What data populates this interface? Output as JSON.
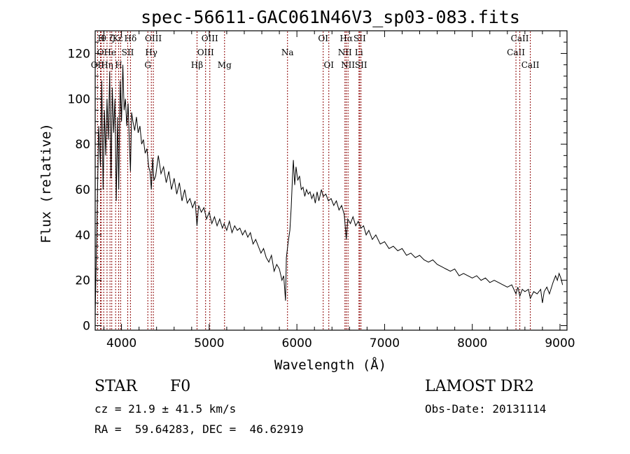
{
  "chart_data": {
    "type": "line",
    "title": "spec-56611-GAC061N46V3_sp03-083.fits",
    "xlabel": "Wavelength (Å)",
    "ylabel": "Flux (relative)",
    "xlim": [
      3700,
      9080
    ],
    "ylim": [
      -2,
      130
    ],
    "x_ticks": [
      4000,
      5000,
      6000,
      7000,
      8000,
      9000
    ],
    "y_ticks": [
      0,
      20,
      40,
      60,
      80,
      100,
      120
    ],
    "grid": false,
    "line_color": "#000000",
    "marker_color": "#8b0000",
    "spectrum": [
      [
        3700,
        5
      ],
      [
        3720,
        45
      ],
      [
        3740,
        88
      ],
      [
        3760,
        70
      ],
      [
        3775,
        108
      ],
      [
        3790,
        60
      ],
      [
        3805,
        95
      ],
      [
        3820,
        75
      ],
      [
        3835,
        100
      ],
      [
        3850,
        82
      ],
      [
        3865,
        112
      ],
      [
        3880,
        65
      ],
      [
        3895,
        105
      ],
      [
        3910,
        85
      ],
      [
        3925,
        100
      ],
      [
        3940,
        55
      ],
      [
        3955,
        92
      ],
      [
        3968,
        60
      ],
      [
        3985,
        108
      ],
      [
        4000,
        90
      ],
      [
        4015,
        115
      ],
      [
        4030,
        95
      ],
      [
        4045,
        100
      ],
      [
        4060,
        88
      ],
      [
        4075,
        98
      ],
      [
        4090,
        80
      ],
      [
        4102,
        68
      ],
      [
        4115,
        94
      ],
      [
        4130,
        90
      ],
      [
        4150,
        86
      ],
      [
        4170,
        92
      ],
      [
        4190,
        85
      ],
      [
        4210,
        88
      ],
      [
        4230,
        80
      ],
      [
        4250,
        82
      ],
      [
        4270,
        76
      ],
      [
        4290,
        78
      ],
      [
        4310,
        70
      ],
      [
        4325,
        68
      ],
      [
        4340,
        60
      ],
      [
        4355,
        74
      ],
      [
        4370,
        64
      ],
      [
        4390,
        66
      ],
      [
        4420,
        75
      ],
      [
        4450,
        67
      ],
      [
        4480,
        70
      ],
      [
        4510,
        63
      ],
      [
        4540,
        68
      ],
      [
        4570,
        60
      ],
      [
        4600,
        65
      ],
      [
        4630,
        58
      ],
      [
        4660,
        63
      ],
      [
        4690,
        55
      ],
      [
        4720,
        60
      ],
      [
        4750,
        54
      ],
      [
        4780,
        56
      ],
      [
        4810,
        52
      ],
      [
        4840,
        55
      ],
      [
        4861,
        44
      ],
      [
        4880,
        53
      ],
      [
        4910,
        50
      ],
      [
        4940,
        52
      ],
      [
        4970,
        47
      ],
      [
        5000,
        50
      ],
      [
        5030,
        45
      ],
      [
        5060,
        48
      ],
      [
        5090,
        44
      ],
      [
        5120,
        47
      ],
      [
        5150,
        43
      ],
      [
        5170,
        45
      ],
      [
        5200,
        42
      ],
      [
        5230,
        46
      ],
      [
        5260,
        41
      ],
      [
        5290,
        44
      ],
      [
        5320,
        42
      ],
      [
        5350,
        43
      ],
      [
        5380,
        40
      ],
      [
        5410,
        42
      ],
      [
        5440,
        39
      ],
      [
        5470,
        41
      ],
      [
        5500,
        36
      ],
      [
        5530,
        38
      ],
      [
        5560,
        35
      ],
      [
        5590,
        32
      ],
      [
        5620,
        34
      ],
      [
        5650,
        30
      ],
      [
        5680,
        28
      ],
      [
        5710,
        31
      ],
      [
        5740,
        24
      ],
      [
        5770,
        27
      ],
      [
        5800,
        25
      ],
      [
        5830,
        20
      ],
      [
        5850,
        22
      ],
      [
        5870,
        11
      ],
      [
        5880,
        30
      ],
      [
        5895,
        35
      ],
      [
        5905,
        38
      ],
      [
        5920,
        42
      ],
      [
        5935,
        52
      ],
      [
        5950,
        66
      ],
      [
        5960,
        73
      ],
      [
        5975,
        62
      ],
      [
        5990,
        70
      ],
      [
        6010,
        64
      ],
      [
        6030,
        66
      ],
      [
        6050,
        60
      ],
      [
        6070,
        61
      ],
      [
        6090,
        57
      ],
      [
        6110,
        60
      ],
      [
        6130,
        58
      ],
      [
        6150,
        59
      ],
      [
        6170,
        56
      ],
      [
        6190,
        58
      ],
      [
        6210,
        54
      ],
      [
        6230,
        59
      ],
      [
        6250,
        55
      ],
      [
        6280,
        60
      ],
      [
        6300,
        57
      ],
      [
        6330,
        58
      ],
      [
        6360,
        55
      ],
      [
        6390,
        56
      ],
      [
        6420,
        53
      ],
      [
        6450,
        55
      ],
      [
        6480,
        51
      ],
      [
        6510,
        53
      ],
      [
        6540,
        49
      ],
      [
        6563,
        38
      ],
      [
        6580,
        47
      ],
      [
        6610,
        45
      ],
      [
        6640,
        48
      ],
      [
        6670,
        44
      ],
      [
        6700,
        46
      ],
      [
        6730,
        43
      ],
      [
        6760,
        44
      ],
      [
        6790,
        40
      ],
      [
        6820,
        42
      ],
      [
        6860,
        38
      ],
      [
        6900,
        40
      ],
      [
        6950,
        36
      ],
      [
        7000,
        37
      ],
      [
        7050,
        34
      ],
      [
        7100,
        35
      ],
      [
        7150,
        33
      ],
      [
        7200,
        34
      ],
      [
        7250,
        31
      ],
      [
        7300,
        32
      ],
      [
        7350,
        30
      ],
      [
        7400,
        31
      ],
      [
        7450,
        29
      ],
      [
        7500,
        28
      ],
      [
        7550,
        29
      ],
      [
        7600,
        27
      ],
      [
        7650,
        26
      ],
      [
        7700,
        25
      ],
      [
        7750,
        24
      ],
      [
        7800,
        25
      ],
      [
        7850,
        22
      ],
      [
        7900,
        23
      ],
      [
        7950,
        22
      ],
      [
        8000,
        21
      ],
      [
        8050,
        22
      ],
      [
        8100,
        20
      ],
      [
        8150,
        21
      ],
      [
        8200,
        19
      ],
      [
        8250,
        20
      ],
      [
        8300,
        19
      ],
      [
        8350,
        18
      ],
      [
        8400,
        17
      ],
      [
        8450,
        18
      ],
      [
        8498,
        14
      ],
      [
        8520,
        17
      ],
      [
        8542,
        13
      ],
      [
        8570,
        16
      ],
      [
        8600,
        15
      ],
      [
        8640,
        16
      ],
      [
        8662,
        12
      ],
      [
        8700,
        15
      ],
      [
        8740,
        14
      ],
      [
        8780,
        16
      ],
      [
        8800,
        10
      ],
      [
        8820,
        15
      ],
      [
        8850,
        17
      ],
      [
        8880,
        14
      ],
      [
        8920,
        19
      ],
      [
        8950,
        22
      ],
      [
        8970,
        20
      ],
      [
        8990,
        23
      ],
      [
        9010,
        21
      ],
      [
        9030,
        18
      ]
    ],
    "line_markers": [
      {
        "wl": 3727,
        "rows": [
          {
            "text": "OII",
            "row": 2
          }
        ]
      },
      {
        "wl": 3760,
        "rows": [
          {
            "text": "O",
            "row": 1
          }
        ]
      },
      {
        "wl": 3770,
        "rows": [
          {
            "text": "H",
            "row": 0
          }
        ]
      },
      {
        "wl": 3797,
        "rows": [
          {
            "text": "θ",
            "row": 0
          }
        ]
      },
      {
        "wl": 3835,
        "rows": [
          {
            "text": "Hη",
            "row": 2
          }
        ]
      },
      {
        "wl": 3869,
        "rows": [
          {
            "text": "He",
            "row": 1
          }
        ]
      },
      {
        "wl": 3889,
        "rows": [
          {
            "text": "ζ",
            "row": 0
          }
        ]
      },
      {
        "wl": 3933,
        "rows": [
          {
            "text": "K",
            "row": 0
          }
        ]
      },
      {
        "wl": 3968,
        "rows": [
          {
            "text": "H",
            "row": 2
          }
        ]
      },
      {
        "wl": 3990,
        "rows": [
          {
            "text": "ε",
            "row": 0
          }
        ]
      },
      {
        "wl": 4071,
        "rows": [
          {
            "text": "SII",
            "row": 1
          }
        ]
      },
      {
        "wl": 4102,
        "rows": [
          {
            "text": "Hδ",
            "row": 0
          }
        ]
      },
      {
        "wl": 4300,
        "rows": [
          {
            "text": "G",
            "row": 2
          }
        ]
      },
      {
        "wl": 4340,
        "rows": [
          {
            "text": "Hγ",
            "row": 1
          }
        ]
      },
      {
        "wl": 4363,
        "rows": [
          {
            "text": "OIII",
            "row": 0
          }
        ]
      },
      {
        "wl": 4861,
        "rows": [
          {
            "text": "Hβ",
            "row": 2
          }
        ]
      },
      {
        "wl": 4959,
        "rows": [
          {
            "text": "OIII",
            "row": 1
          }
        ]
      },
      {
        "wl": 5007,
        "rows": [
          {
            "text": "OIII",
            "row": 0
          }
        ]
      },
      {
        "wl": 5175,
        "rows": [
          {
            "text": "Mg",
            "row": 2
          }
        ]
      },
      {
        "wl": 5893,
        "rows": [
          {
            "text": "Na",
            "row": 1
          }
        ]
      },
      {
        "wl": 6300,
        "rows": [
          {
            "text": "OI",
            "row": 0
          }
        ]
      },
      {
        "wl": 6364,
        "rows": [
          {
            "text": "OI",
            "row": 2
          }
        ]
      },
      {
        "wl": 6548,
        "rows": [
          {
            "text": "NII",
            "row": 1
          }
        ]
      },
      {
        "wl": 6563,
        "rows": [
          {
            "text": "Hα",
            "row": 0
          }
        ]
      },
      {
        "wl": 6583,
        "rows": [
          {
            "text": "NII",
            "row": 2
          }
        ]
      },
      {
        "wl": 6708,
        "rows": [
          {
            "text": "Li",
            "row": 1
          }
        ]
      },
      {
        "wl": 6716,
        "rows": [
          {
            "text": "SII",
            "row": 0
          }
        ]
      },
      {
        "wl": 6731,
        "rows": [
          {
            "text": "SII",
            "row": 2
          }
        ]
      },
      {
        "wl": 8498,
        "rows": [
          {
            "text": "CaII",
            "row": 1
          }
        ]
      },
      {
        "wl": 8542,
        "rows": [
          {
            "text": "CaII",
            "row": 0
          }
        ]
      },
      {
        "wl": 8662,
        "rows": [
          {
            "text": "CaII",
            "row": 2
          }
        ]
      }
    ]
  },
  "info": {
    "object_class": "STAR",
    "subclass": "F0",
    "survey": "LAMOST DR2",
    "cz": "cz = 21.9 ± 41.5 km/s",
    "obs_date": "Obs-Date: 20131114",
    "coords": "RA =  59.64283, DEC =  46.62919"
  }
}
